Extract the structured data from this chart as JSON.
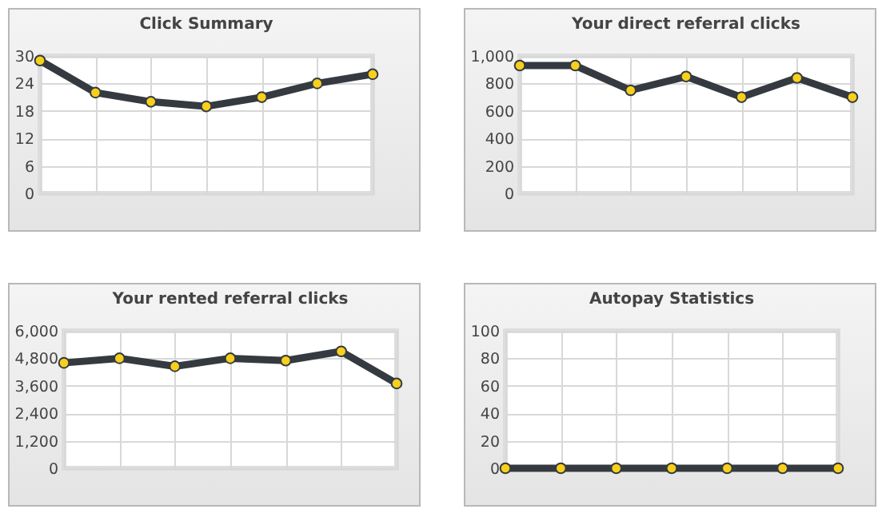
{
  "chart_data": [
    {
      "type": "line",
      "title": "Click Summary",
      "categories": [
        null,
        null,
        null,
        null,
        null,
        null,
        null
      ],
      "series": [
        {
          "color": "#343a40",
          "values": [
            29,
            22,
            20,
            19,
            21,
            24,
            26
          ]
        }
      ],
      "ylim": [
        0,
        30
      ],
      "yticks": [
        0,
        6,
        12,
        18,
        24,
        30
      ],
      "grid": true,
      "marker": "circle",
      "tick_labels": "y"
    },
    {
      "type": "line",
      "title": "Your direct referral clicks",
      "categories": [
        null,
        null,
        null,
        null,
        null,
        null,
        null
      ],
      "series": [
        {
          "color": "#343a40",
          "values": [
            930,
            930,
            750,
            850,
            700,
            840,
            700
          ]
        }
      ],
      "ylim": [
        0,
        1000
      ],
      "yticks": [
        0,
        200,
        400,
        600,
        800,
        {
          "value": 1000,
          "label": "1,000"
        }
      ],
      "grid": true,
      "marker": "circle",
      "tick_labels": "y"
    },
    {
      "type": "line",
      "title": "Your rented referral clicks",
      "categories": [
        null,
        null,
        null,
        null,
        null,
        null,
        null
      ],
      "series": [
        {
          "color": "#343a40",
          "values": [
            4600,
            4800,
            4450,
            4800,
            4700,
            5100,
            3700
          ]
        }
      ],
      "ylim": [
        0,
        6000
      ],
      "yticks": [
        0,
        {
          "value": 1200,
          "label": "1,200"
        },
        {
          "value": 2400,
          "label": "2,400"
        },
        {
          "value": 3600,
          "label": "3,600"
        },
        {
          "value": 4800,
          "label": "4,800"
        },
        {
          "value": 6000,
          "label": "6,000"
        }
      ],
      "grid": true,
      "marker": "circle",
      "tick_labels": "y"
    },
    {
      "type": "line",
      "title": "Autopay Statistics",
      "categories": [
        null,
        null,
        null,
        null,
        null,
        null,
        null
      ],
      "series": [
        {
          "color": "#343a40",
          "values": [
            0,
            0,
            0,
            0,
            0,
            0,
            0
          ]
        }
      ],
      "ylim": [
        0,
        100
      ],
      "yticks": [
        0,
        20,
        40,
        60,
        80,
        100
      ],
      "grid": true,
      "marker": "circle",
      "tick_labels": "y"
    }
  ]
}
